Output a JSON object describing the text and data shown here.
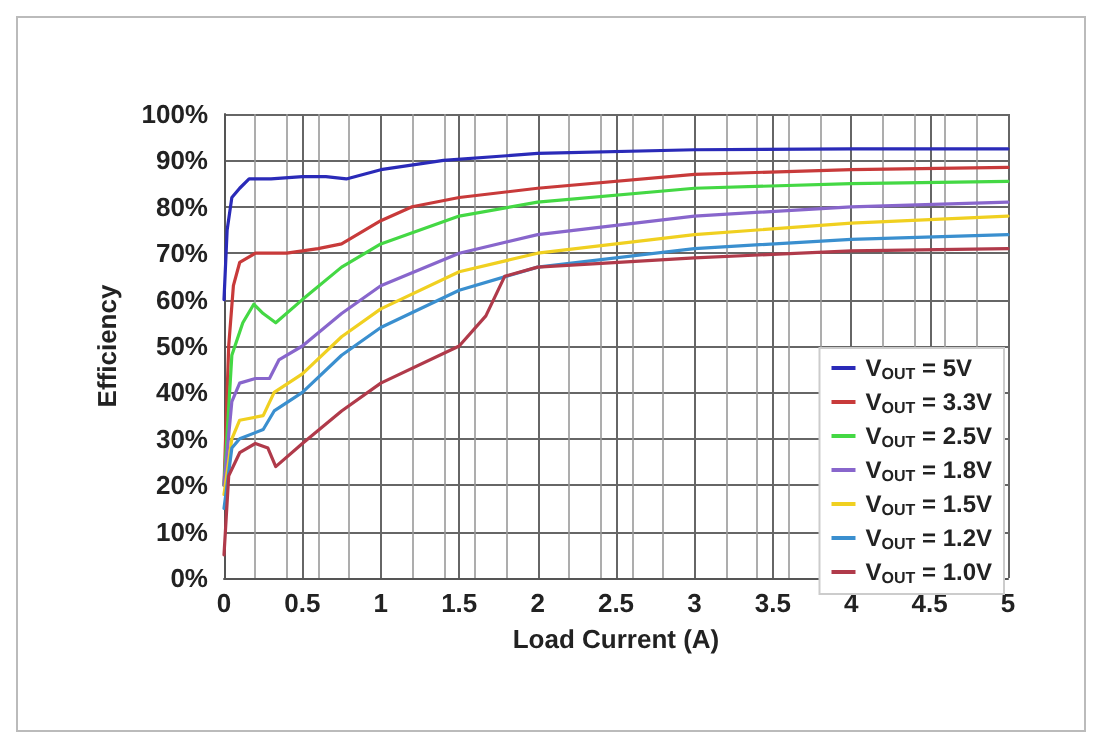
{
  "chart_data": {
    "type": "line",
    "xlabel": "Load Current (A)",
    "ylabel": "Efficiency",
    "xlim": [
      0,
      5
    ],
    "xticks": [
      0,
      0.5,
      1,
      1.5,
      2,
      2.5,
      3,
      3.5,
      4,
      4.5,
      5
    ],
    "ylim": [
      0,
      100
    ],
    "yticks": [
      {
        "value": 0,
        "label": "0%"
      },
      {
        "value": 10,
        "label": "10%"
      },
      {
        "value": 20,
        "label": "20%"
      },
      {
        "value": 30,
        "label": "30%"
      },
      {
        "value": 40,
        "label": "40%"
      },
      {
        "value": 50,
        "label": "50%"
      },
      {
        "value": 60,
        "label": "60%"
      },
      {
        "value": 70,
        "label": "70%"
      },
      {
        "value": 80,
        "label": "80%"
      },
      {
        "value": 90,
        "label": "90%"
      },
      {
        "value": 100,
        "label": "100%"
      }
    ],
    "grid": true,
    "legend": "bottom right",
    "marker": "none",
    "line_style": "solid",
    "series": [
      {
        "name": "V$_{OUT}$ = 5V",
        "color": "#2a2ab8",
        "x": [
          0,
          0.02,
          0.05,
          0.1,
          0.16,
          0.3,
          0.5,
          0.65,
          0.78,
          1,
          1.4,
          2,
          3,
          4,
          5
        ],
        "values": [
          60,
          75,
          82,
          84,
          86,
          86,
          86.5,
          86.5,
          86,
          88,
          90,
          91.5,
          92.3,
          92.5,
          92.5
        ]
      },
      {
        "name": "V$_{OUT}$ = 3.3V",
        "color": "#c83a3a",
        "x": [
          0,
          0.03,
          0.06,
          0.1,
          0.2,
          0.4,
          0.6,
          0.75,
          1,
          1.2,
          1.5,
          2,
          3,
          4,
          5
        ],
        "values": [
          20,
          50,
          63,
          68,
          70,
          70,
          71,
          72,
          77,
          80,
          82,
          84,
          87,
          88,
          88.5
        ]
      },
      {
        "name": "V$_{OUT}$ = 2.5V",
        "color": "#44d844",
        "x": [
          0,
          0.05,
          0.12,
          0.19,
          0.25,
          0.33,
          0.5,
          0.75,
          1,
          1.5,
          2,
          3,
          4,
          5
        ],
        "values": [
          20,
          48,
          55,
          59,
          57,
          55,
          60,
          67,
          72,
          78,
          81,
          84,
          85,
          85.5
        ]
      },
      {
        "name": "V$_{OUT}$ = 1.8V",
        "color": "#8866cc",
        "x": [
          0,
          0.05,
          0.1,
          0.2,
          0.29,
          0.35,
          0.5,
          0.75,
          1,
          1.5,
          2,
          2.5,
          3,
          4,
          5
        ],
        "values": [
          20,
          38,
          42,
          43,
          43,
          47,
          50,
          57,
          63,
          70,
          74,
          76,
          78,
          80,
          81
        ]
      },
      {
        "name": "V$_{OUT}$ = 1.5V",
        "color": "#f0d020",
        "x": [
          0,
          0.05,
          0.1,
          0.25,
          0.32,
          0.5,
          0.75,
          1,
          1.5,
          2,
          3,
          4,
          5
        ],
        "values": [
          18,
          30,
          34,
          35,
          40,
          44,
          52,
          58,
          66,
          70,
          74,
          76.5,
          78
        ]
      },
      {
        "name": "V$_{OUT}$ = 1.2V",
        "color": "#3a8fcf",
        "x": [
          0,
          0.05,
          0.1,
          0.25,
          0.32,
          0.5,
          0.75,
          1,
          1.5,
          2,
          3,
          4,
          5
        ],
        "values": [
          15,
          28,
          30,
          32,
          36,
          40,
          48,
          54,
          62,
          67,
          71,
          73,
          74
        ]
      },
      {
        "name": "V$_{OUT}$ = 1.0V",
        "color": "#b03a4a",
        "x": [
          0,
          0.03,
          0.1,
          0.2,
          0.28,
          0.33,
          0.5,
          0.75,
          1,
          1.5,
          1.67,
          1.79,
          2,
          3,
          4,
          5
        ],
        "values": [
          5,
          22,
          27,
          29,
          28,
          24,
          29,
          36,
          42,
          50,
          56.5,
          65,
          67,
          69,
          70.5,
          71
        ]
      }
    ]
  }
}
